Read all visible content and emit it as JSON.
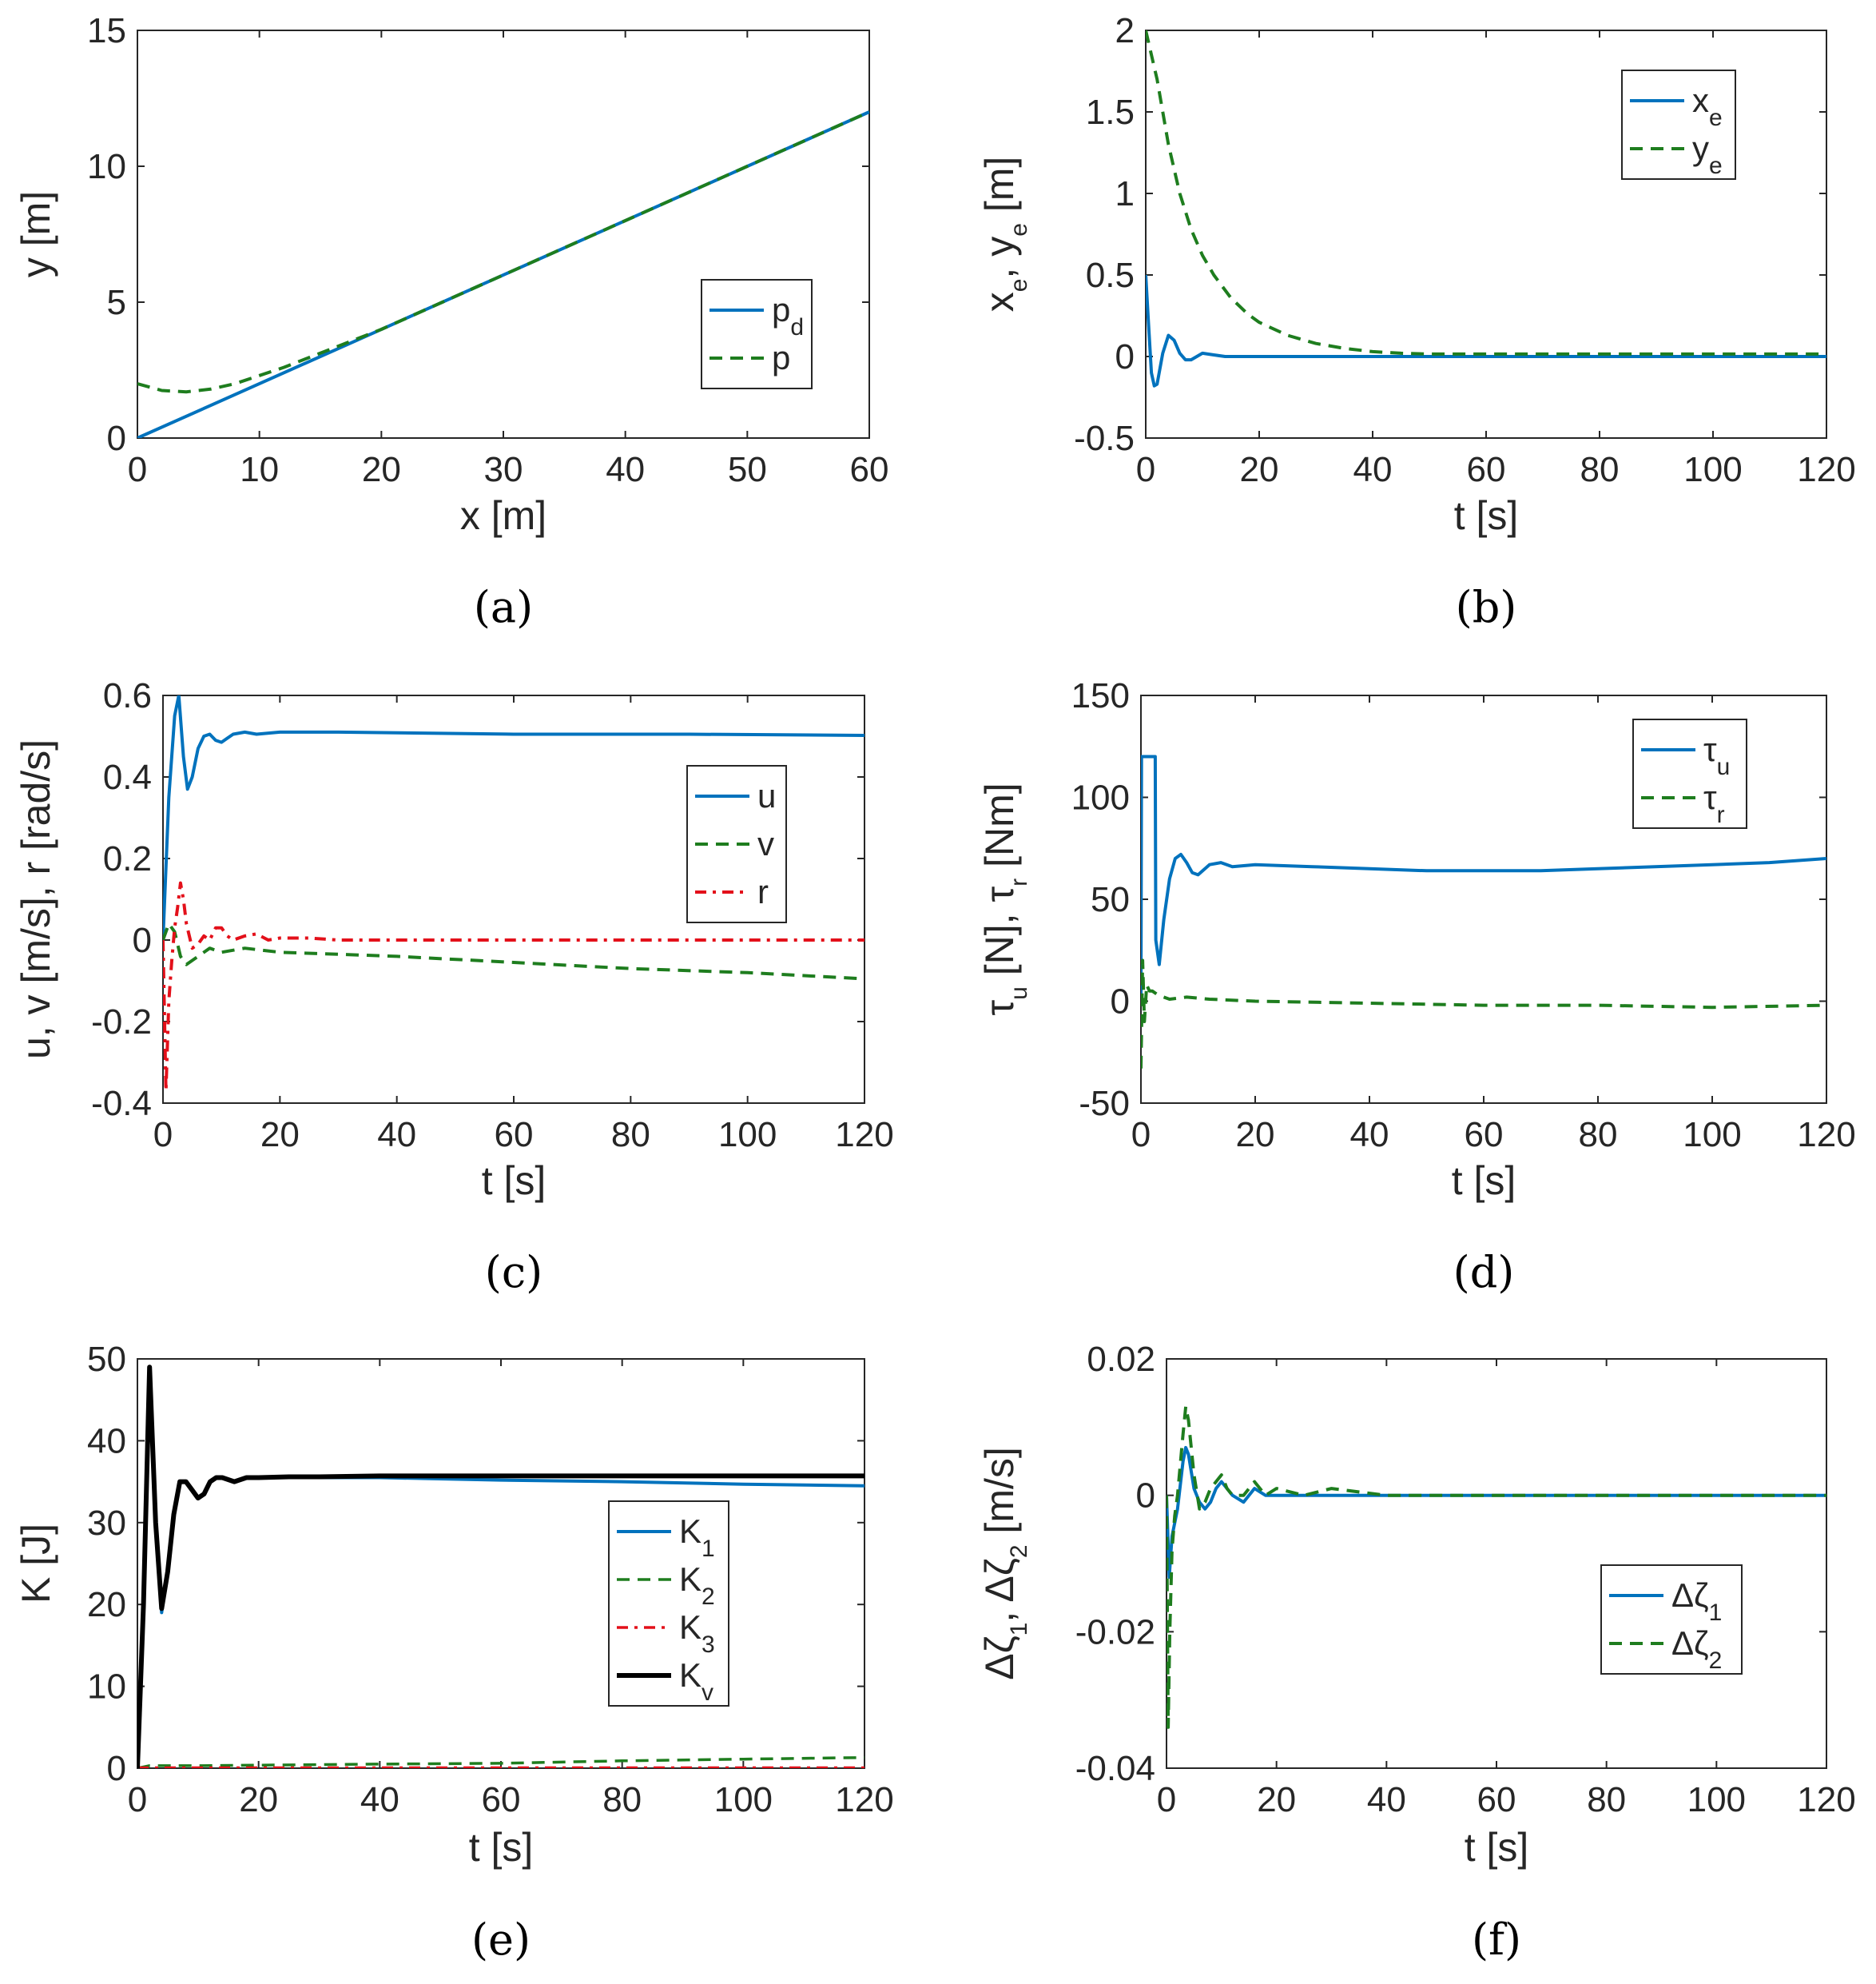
{
  "colors": {
    "blue": "#0072BD",
    "green": "#1E7D1E",
    "red": "#E3101A",
    "black": "#000000"
  },
  "chart_data": [
    {
      "type": "line",
      "caption": "(a)",
      "xlabel": "x [m]",
      "ylabel": "y [m]",
      "xlim": [
        0,
        60
      ],
      "ylim": [
        0,
        15
      ],
      "xticks": [
        0,
        10,
        20,
        30,
        40,
        50,
        60
      ],
      "yticks": [
        0,
        5,
        10,
        15
      ],
      "legend_position": "lower-right",
      "series": [
        {
          "name": "p",
          "sub": "d",
          "color": "blue",
          "dash": "solid",
          "width": 4,
          "x": [
            0,
            60
          ],
          "y": [
            0,
            12
          ]
        },
        {
          "name": "p",
          "sub": "",
          "color": "green",
          "dash": "dashed",
          "width": 4,
          "x": [
            0,
            2,
            4,
            6,
            8,
            10,
            12,
            14,
            16,
            18,
            20,
            25,
            30,
            40,
            50,
            60
          ],
          "y": [
            2.0,
            1.75,
            1.7,
            1.8,
            2.0,
            2.3,
            2.6,
            2.95,
            3.3,
            3.65,
            4.0,
            5.0,
            6.0,
            8.0,
            10.0,
            12.0
          ]
        }
      ]
    },
    {
      "type": "line",
      "caption": "(b)",
      "xlabel": "t [s]",
      "ylabel": "x_e, y_e [m]",
      "xlim": [
        0,
        120
      ],
      "ylim": [
        -0.5,
        2
      ],
      "xticks": [
        0,
        20,
        40,
        60,
        80,
        100,
        120
      ],
      "yticks": [
        -0.5,
        0,
        0.5,
        1,
        1.5,
        2
      ],
      "legend_position": "top-right",
      "series": [
        {
          "name": "x",
          "sub": "e",
          "color": "blue",
          "dash": "solid",
          "width": 4,
          "x": [
            0,
            0.5,
            1,
            1.5,
            2,
            3,
            4,
            5,
            6,
            7,
            8,
            10,
            12,
            14,
            20,
            120
          ],
          "y": [
            0.5,
            0.2,
            -0.1,
            -0.18,
            -0.17,
            0.02,
            0.13,
            0.1,
            0.02,
            -0.02,
            -0.02,
            0.02,
            0.01,
            0.0,
            0.0,
            0.0
          ]
        },
        {
          "name": "y",
          "sub": "e",
          "color": "green",
          "dash": "dashed",
          "width": 4,
          "x": [
            0,
            2,
            4,
            6,
            8,
            10,
            12,
            15,
            18,
            20,
            25,
            30,
            35,
            40,
            45,
            50,
            60,
            120
          ],
          "y": [
            2.0,
            1.7,
            1.3,
            1.0,
            0.78,
            0.62,
            0.5,
            0.36,
            0.26,
            0.21,
            0.13,
            0.08,
            0.05,
            0.03,
            0.02,
            0.015,
            0.015,
            0.015
          ]
        }
      ]
    },
    {
      "type": "line",
      "caption": "(c)",
      "xlabel": "t [s]",
      "ylabel": "u, v [m/s], r [rad/s]",
      "xlim": [
        0,
        120
      ],
      "ylim": [
        -0.4,
        0.6
      ],
      "xticks": [
        0,
        20,
        40,
        60,
        80,
        100,
        120
      ],
      "yticks": [
        -0.4,
        -0.2,
        0,
        0.2,
        0.4,
        0.6
      ],
      "legend_position": "right",
      "series": [
        {
          "name": "u",
          "sub": "",
          "color": "blue",
          "dash": "solid",
          "width": 4,
          "x": [
            0,
            1,
            2,
            2.7,
            3.5,
            4.2,
            5,
            6,
            7,
            8,
            9,
            10,
            11,
            12,
            14,
            16,
            20,
            30,
            60,
            90,
            120
          ],
          "y": [
            0.0,
            0.35,
            0.55,
            0.6,
            0.45,
            0.37,
            0.4,
            0.47,
            0.5,
            0.505,
            0.49,
            0.485,
            0.495,
            0.505,
            0.51,
            0.505,
            0.51,
            0.51,
            0.505,
            0.505,
            0.502
          ]
        },
        {
          "name": "v",
          "sub": "",
          "color": "green",
          "dash": "dashed",
          "width": 4,
          "x": [
            0,
            1,
            2,
            3,
            4,
            6,
            8,
            10,
            14,
            20,
            30,
            40,
            60,
            80,
            100,
            120
          ],
          "y": [
            0.0,
            0.04,
            0.02,
            -0.04,
            -0.06,
            -0.04,
            -0.02,
            -0.03,
            -0.02,
            -0.03,
            -0.035,
            -0.04,
            -0.055,
            -0.07,
            -0.08,
            -0.095
          ]
        },
        {
          "name": "r",
          "sub": "",
          "color": "red",
          "dash": "dashdot",
          "width": 4,
          "x": [
            0,
            0.5,
            1,
            1.5,
            2,
            2.5,
            3,
            3.5,
            4,
            5,
            6,
            7,
            8,
            9,
            10,
            11,
            12,
            14,
            16,
            18,
            20,
            25,
            30,
            120
          ],
          "y": [
            0.0,
            -0.37,
            -0.15,
            -0.05,
            0.03,
            0.08,
            0.14,
            0.1,
            0.04,
            -0.02,
            -0.01,
            0.01,
            0.0,
            0.03,
            0.03,
            0.01,
            0.0,
            0.01,
            0.015,
            0.0,
            0.005,
            0.005,
            0.0,
            0.0
          ]
        }
      ]
    },
    {
      "type": "line",
      "caption": "(d)",
      "xlabel": "t [s]",
      "ylabel": "τ_u [N], τ_r [Nm]",
      "xlim": [
        0,
        120
      ],
      "ylim": [
        -50,
        150
      ],
      "xticks": [
        0,
        20,
        40,
        60,
        80,
        100,
        120
      ],
      "yticks": [
        -50,
        0,
        50,
        100,
        150
      ],
      "legend_position": "top-right",
      "series": [
        {
          "name": "τ",
          "sub": "u",
          "color": "blue",
          "dash": "solid",
          "width": 4,
          "x": [
            0,
            0.1,
            2.5,
            2.6,
            3.2,
            4,
            5,
            6,
            7,
            8,
            9,
            10,
            12,
            14,
            16,
            20,
            30,
            40,
            50,
            60,
            70,
            80,
            90,
            100,
            110,
            120
          ],
          "y": [
            0,
            120,
            120,
            30,
            18,
            40,
            60,
            70,
            72,
            68,
            63,
            62,
            67,
            68,
            66,
            67,
            66,
            65,
            64,
            64,
            64,
            65,
            66,
            67,
            68,
            70
          ]
        },
        {
          "name": "τ",
          "sub": "r",
          "color": "green",
          "dash": "dashed",
          "width": 4,
          "x": [
            0,
            0.3,
            0.6,
            1,
            1.5,
            2,
            3,
            5,
            8,
            12,
            20,
            40,
            60,
            80,
            100,
            120
          ],
          "y": [
            -33,
            20,
            -10,
            8,
            5,
            5,
            3,
            1,
            2,
            1,
            0,
            -1,
            -2,
            -2,
            -3,
            -2
          ]
        }
      ]
    },
    {
      "type": "line",
      "caption": "(e)",
      "xlabel": "t [s]",
      "ylabel": "K [J]",
      "xlim": [
        0,
        120
      ],
      "ylim": [
        0,
        50
      ],
      "xticks": [
        0,
        20,
        40,
        60,
        80,
        100,
        120
      ],
      "yticks": [
        0,
        10,
        20,
        30,
        40,
        50
      ],
      "legend_position": "lower-right",
      "series": [
        {
          "name": "K",
          "sub": "1",
          "color": "blue",
          "dash": "solid",
          "width": 4,
          "x": [
            0,
            1,
            2,
            3,
            4,
            5,
            6,
            7,
            8,
            9,
            10,
            11,
            12,
            13,
            14,
            16,
            18,
            20,
            25,
            30,
            40,
            60,
            80,
            100,
            120
          ],
          "y": [
            0,
            20,
            48,
            30,
            19,
            24,
            31,
            35,
            35,
            34,
            33,
            33.5,
            35,
            35.5,
            35.5,
            35,
            35.5,
            35.5,
            35.5,
            35.5,
            35.5,
            35.2,
            35,
            34.7,
            34.5
          ]
        },
        {
          "name": "K",
          "sub": "2",
          "color": "green",
          "dash": "dashed",
          "width": 3.5,
          "x": [
            0,
            2,
            10,
            40,
            60,
            80,
            100,
            120
          ],
          "y": [
            0,
            0.3,
            0.3,
            0.5,
            0.6,
            0.9,
            1.1,
            1.3
          ]
        },
        {
          "name": "K",
          "sub": "3",
          "color": "red",
          "dash": "dashdot",
          "width": 3.5,
          "x": [
            0,
            120
          ],
          "y": [
            0.05,
            0.05
          ]
        },
        {
          "name": "K",
          "sub": "v",
          "color": "black",
          "dash": "solid",
          "width": 6,
          "x": [
            0,
            1,
            2,
            3,
            4,
            5,
            6,
            7,
            8,
            9,
            10,
            11,
            12,
            13,
            14,
            16,
            18,
            20,
            25,
            30,
            40,
            60,
            80,
            100,
            120
          ],
          "y": [
            0,
            20,
            49,
            30,
            19.5,
            24,
            31,
            35,
            35,
            34,
            33,
            33.5,
            35,
            35.5,
            35.5,
            35,
            35.5,
            35.5,
            35.6,
            35.6,
            35.7,
            35.7,
            35.7,
            35.7,
            35.7
          ]
        }
      ]
    },
    {
      "type": "line",
      "caption": "(f)",
      "xlabel": "t [s]",
      "ylabel": "Δζ_1, Δζ_2 [m/s]",
      "xlim": [
        0,
        120
      ],
      "ylim": [
        -0.04,
        0.02
      ],
      "xticks": [
        0,
        20,
        40,
        60,
        80,
        100,
        120
      ],
      "yticks": [
        -0.04,
        -0.02,
        0,
        0.02
      ],
      "legend_position": "lower-right",
      "series": [
        {
          "name": "Δζ",
          "sub": "1",
          "color": "blue",
          "dash": "solid",
          "width": 4,
          "x": [
            0,
            0.5,
            1,
            2,
            3,
            3.5,
            4,
            5,
            6,
            7,
            8,
            9,
            10,
            11,
            12,
            14,
            16,
            18,
            20,
            25,
            30,
            120
          ],
          "y": [
            0,
            -0.012,
            -0.006,
            -0.002,
            0.005,
            0.007,
            0.006,
            0.001,
            -0.001,
            -0.002,
            -0.001,
            0.001,
            0.002,
            0.001,
            0.0,
            -0.001,
            0.001,
            0.0,
            0.0,
            0.0,
            0.0,
            0.0
          ]
        },
        {
          "name": "Δζ",
          "sub": "2",
          "color": "green",
          "dash": "dashed",
          "width": 4,
          "x": [
            0,
            0.3,
            0.6,
            1,
            1.5,
            2,
            3,
            3.5,
            4,
            5,
            6,
            7,
            8,
            9,
            10,
            11,
            12,
            14,
            16,
            18,
            20,
            25,
            30,
            40,
            120
          ],
          "y": [
            0,
            -0.034,
            -0.02,
            -0.008,
            -0.003,
            0.0,
            0.009,
            0.013,
            0.011,
            0.003,
            -0.002,
            -0.001,
            0.001,
            0.002,
            0.003,
            0.001,
            0.0,
            0.0,
            0.002,
            0.0,
            0.001,
            0.0,
            0.001,
            0.0,
            0.0
          ]
        }
      ]
    }
  ]
}
